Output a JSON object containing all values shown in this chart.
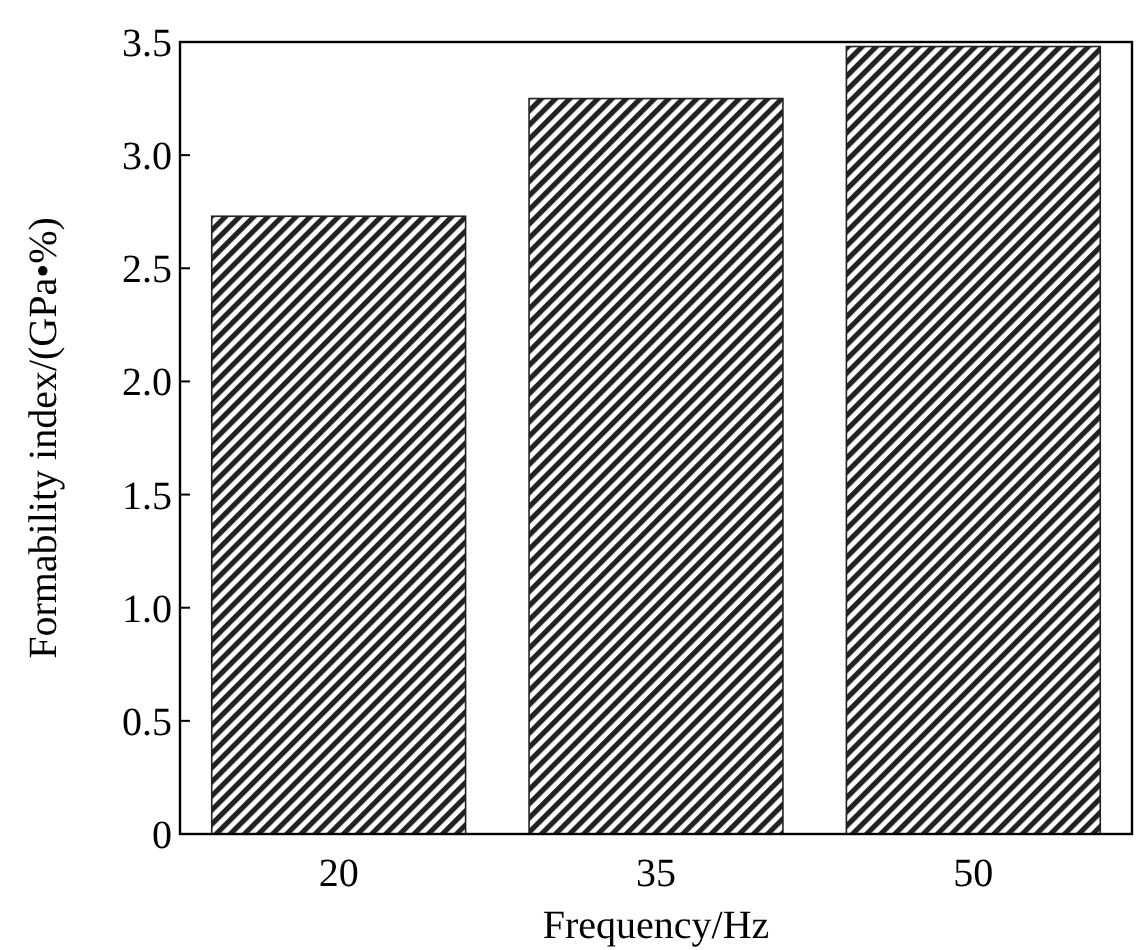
{
  "chart_data": {
    "type": "bar",
    "xlabel": "Frequency/Hz",
    "ylabel": "Formability index/(GPa•%)",
    "categories": [
      "20",
      "35",
      "50"
    ],
    "values": [
      2.73,
      3.25,
      3.48
    ],
    "color": "#222222",
    "ylim": [
      0,
      3.5
    ],
    "yticks": [
      0,
      0.5,
      {
        "value": 1,
        "label": "1.0"
      },
      1.5,
      {
        "value": 2,
        "label": "2.0"
      },
      2.5,
      {
        "value": 3,
        "label": "3.0"
      },
      3.5
    ],
    "grid": false
  }
}
